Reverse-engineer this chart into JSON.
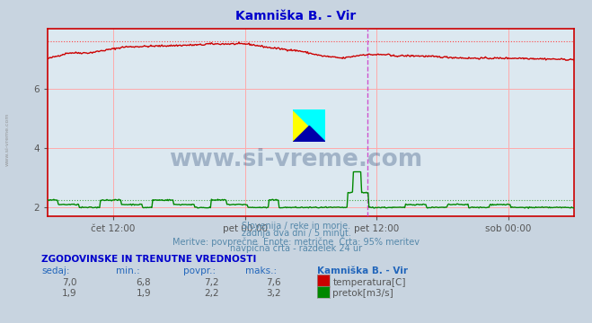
{
  "title": "Kamniška B. - Vir",
  "title_color": "#0000cc",
  "bg_color": "#c8d4e0",
  "plot_bg_color": "#dce8f0",
  "grid_color": "#ffaaaa",
  "grid_alpha": 1.0,
  "xlabel_ticks": [
    "čet 12:00",
    "pet 00:00",
    "pet 12:00",
    "sob 00:00"
  ],
  "xlabel_ticks_pos": [
    0.125,
    0.375,
    0.625,
    0.875
  ],
  "ylim": [
    1.7,
    8.0
  ],
  "yticks": [
    2,
    4,
    6
  ],
  "temp_color": "#cc0000",
  "flow_color": "#008800",
  "dotted_temp_color": "#ff4444",
  "dotted_flow_color": "#44aa44",
  "vline_color": "#cc44cc",
  "vline_pos": 0.608,
  "border_color": "#cc0000",
  "axis_text_color": "#555555",
  "text_color": "#5588aa",
  "footer_text1": "Slovenija / reke in morje.",
  "footer_text2": "zadnja dva dni / 5 minut.",
  "footer_text3": "Meritve: povprečne  Enote: metrične  Črta: 95% meritev",
  "footer_text4": "navpična črta - razdelek 24 ur",
  "table_header": "ZGODOVINSKE IN TRENUTNE VREDNOSTI",
  "table_col1": "sedaj:",
  "table_col2": "min.:",
  "table_col3": "povpr.:",
  "table_col4": "maks.:",
  "table_col5": "Kamniška B. - Vir",
  "table_row1": [
    "7,0",
    "6,8",
    "7,2",
    "7,6",
    "temperatura[C]"
  ],
  "table_row2": [
    "1,9",
    "1,9",
    "2,2",
    "3,2",
    "pretok[m3/s]"
  ],
  "temp_max_line": 7.6,
  "flow_avg_line": 2.25,
  "n_points": 576
}
